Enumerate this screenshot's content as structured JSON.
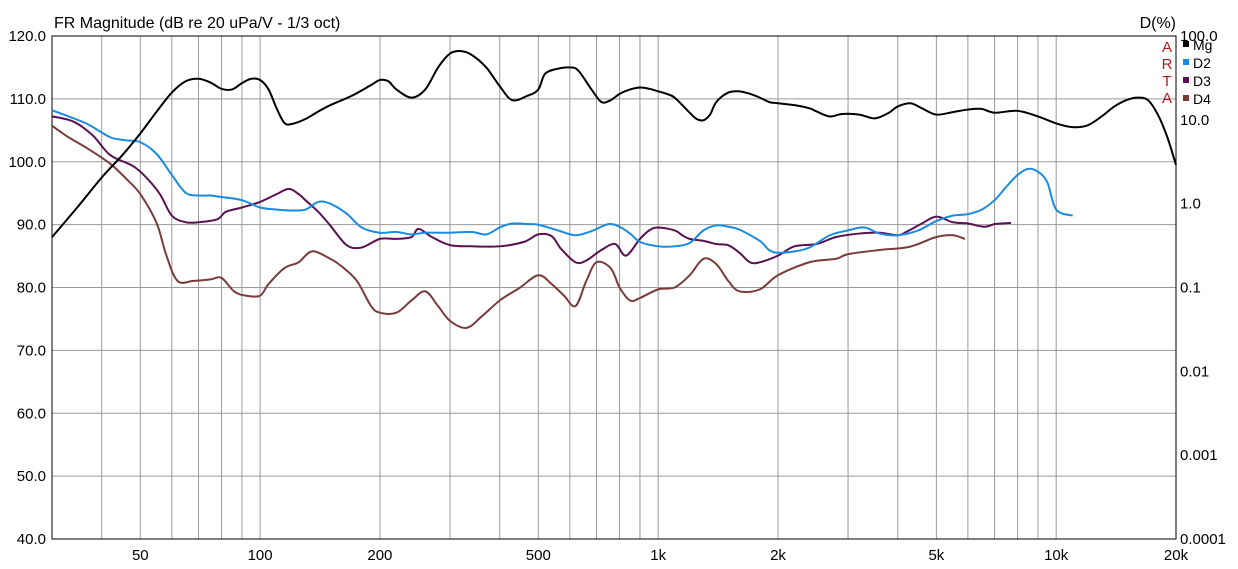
{
  "chart_data": {
    "type": "line",
    "title": "FR Magnitude (dB re 20 uPa/V - 1/3 oct)",
    "right_axis_title": "D(%)",
    "watermark": [
      "A",
      "R",
      "T",
      "A"
    ],
    "x_scale": "log",
    "xlim": [
      30,
      20000
    ],
    "x_tick_labels": [
      "50",
      "100",
      "200",
      "500",
      "1k",
      "2k",
      "5k",
      "10k",
      "20k"
    ],
    "x_tick_values": [
      50,
      100,
      200,
      500,
      1000,
      2000,
      5000,
      10000,
      20000
    ],
    "ylim": [
      40,
      120
    ],
    "y_tick_labels": [
      "120.0",
      "110.0",
      "100.0",
      "90.0",
      "80.0",
      "70.0",
      "60.0",
      "50.0",
      "40.0"
    ],
    "y_tick_values": [
      120,
      110,
      100,
      90,
      80,
      70,
      60,
      50,
      40
    ],
    "y2_scale": "log",
    "y2lim": [
      0.0001,
      100
    ],
    "y2_tick_labels": [
      "100.0",
      "10.0",
      "1.0",
      "0.1",
      "0.01",
      "0.001",
      "0.0001"
    ],
    "y2_tick_values": [
      100,
      10,
      1,
      0.1,
      0.01,
      0.001,
      0.0001
    ],
    "grid": true,
    "legend_position": "top-right",
    "series": [
      {
        "name": "Mg",
        "axis": "left",
        "color": "#000000",
        "points": [
          [
            30,
            88
          ],
          [
            35,
            93
          ],
          [
            40,
            97.5
          ],
          [
            45,
            101
          ],
          [
            50,
            104.5
          ],
          [
            55,
            108
          ],
          [
            60,
            111
          ],
          [
            65,
            112.8
          ],
          [
            70,
            113.2
          ],
          [
            75,
            112.6
          ],
          [
            80,
            111.6
          ],
          [
            85,
            111.5
          ],
          [
            90,
            112.5
          ],
          [
            95,
            113.2
          ],
          [
            100,
            113
          ],
          [
            105,
            111.5
          ],
          [
            110,
            108.5
          ],
          [
            115,
            106.2
          ],
          [
            120,
            106
          ],
          [
            130,
            106.8
          ],
          [
            140,
            108
          ],
          [
            150,
            109
          ],
          [
            170,
            110.5
          ],
          [
            190,
            112.2
          ],
          [
            200,
            113
          ],
          [
            210,
            112.8
          ],
          [
            220,
            111.5
          ],
          [
            240,
            110.2
          ],
          [
            260,
            111.5
          ],
          [
            280,
            115
          ],
          [
            300,
            117.2
          ],
          [
            320,
            117.6
          ],
          [
            340,
            117
          ],
          [
            370,
            115
          ],
          [
            400,
            112
          ],
          [
            430,
            109.8
          ],
          [
            470,
            110.5
          ],
          [
            500,
            111.5
          ],
          [
            520,
            114
          ],
          [
            560,
            114.8
          ],
          [
            600,
            115
          ],
          [
            630,
            114.5
          ],
          [
            680,
            111.5
          ],
          [
            720,
            109.5
          ],
          [
            760,
            109.8
          ],
          [
            800,
            110.8
          ],
          [
            850,
            111.5
          ],
          [
            900,
            111.8
          ],
          [
            950,
            111.6
          ],
          [
            1000,
            111.2
          ],
          [
            1050,
            110.8
          ],
          [
            1100,
            110.2
          ],
          [
            1200,
            107.8
          ],
          [
            1250,
            106.8
          ],
          [
            1300,
            106.6
          ],
          [
            1350,
            107.5
          ],
          [
            1400,
            109.5
          ],
          [
            1500,
            111
          ],
          [
            1600,
            111.2
          ],
          [
            1700,
            110.8
          ],
          [
            1800,
            110.2
          ],
          [
            1900,
            109.5
          ],
          [
            2000,
            109.3
          ],
          [
            2200,
            109
          ],
          [
            2400,
            108.5
          ],
          [
            2500,
            108
          ],
          [
            2700,
            107.2
          ],
          [
            2900,
            107.6
          ],
          [
            3200,
            107.5
          ],
          [
            3500,
            106.9
          ],
          [
            3800,
            107.8
          ],
          [
            4000,
            108.8
          ],
          [
            4300,
            109.3
          ],
          [
            4600,
            108.5
          ],
          [
            5000,
            107.5
          ],
          [
            5500,
            107.9
          ],
          [
            6000,
            108.3
          ],
          [
            6500,
            108.4
          ],
          [
            7000,
            107.8
          ],
          [
            8000,
            108.1
          ],
          [
            9000,
            107.2
          ],
          [
            10000,
            106.1
          ],
          [
            11000,
            105.5
          ],
          [
            12000,
            105.8
          ],
          [
            13000,
            107.2
          ],
          [
            14000,
            108.8
          ],
          [
            15000,
            109.8
          ],
          [
            16000,
            110.2
          ],
          [
            17000,
            109.8
          ],
          [
            18000,
            107.5
          ],
          [
            19000,
            104
          ],
          [
            20000,
            99.5
          ]
        ]
      },
      {
        "name": "D2",
        "axis": "right",
        "color": "#1a8ce0",
        "points": [
          [
            30,
            13
          ],
          [
            33,
            11
          ],
          [
            37,
            8.8
          ],
          [
            42,
            6.2
          ],
          [
            46,
            5.7
          ],
          [
            50,
            5.4
          ],
          [
            55,
            3.9
          ],
          [
            60,
            2.2
          ],
          [
            65,
            1.35
          ],
          [
            70,
            1.25
          ],
          [
            75,
            1.25
          ],
          [
            80,
            1.2
          ],
          [
            90,
            1.1
          ],
          [
            100,
            0.9
          ],
          [
            110,
            0.85
          ],
          [
            120,
            0.83
          ],
          [
            130,
            0.85
          ],
          [
            140,
            1.05
          ],
          [
            150,
            1.0
          ],
          [
            165,
            0.76
          ],
          [
            180,
            0.52
          ],
          [
            200,
            0.45
          ],
          [
            220,
            0.46
          ],
          [
            240,
            0.43
          ],
          [
            260,
            0.45
          ],
          [
            300,
            0.45
          ],
          [
            340,
            0.46
          ],
          [
            370,
            0.43
          ],
          [
            400,
            0.52
          ],
          [
            430,
            0.58
          ],
          [
            470,
            0.57
          ],
          [
            500,
            0.56
          ],
          [
            560,
            0.48
          ],
          [
            620,
            0.42
          ],
          [
            680,
            0.47
          ],
          [
            750,
            0.57
          ],
          [
            800,
            0.53
          ],
          [
            850,
            0.44
          ],
          [
            900,
            0.35
          ],
          [
            1000,
            0.31
          ],
          [
            1100,
            0.31
          ],
          [
            1200,
            0.34
          ],
          [
            1300,
            0.48
          ],
          [
            1400,
            0.55
          ],
          [
            1500,
            0.53
          ],
          [
            1600,
            0.49
          ],
          [
            1800,
            0.36
          ],
          [
            1900,
            0.28
          ],
          [
            2000,
            0.26
          ],
          [
            2200,
            0.27
          ],
          [
            2400,
            0.3
          ],
          [
            2700,
            0.42
          ],
          [
            3000,
            0.48
          ],
          [
            3300,
            0.52
          ],
          [
            3600,
            0.44
          ],
          [
            4000,
            0.42
          ],
          [
            4500,
            0.48
          ],
          [
            5000,
            0.62
          ],
          [
            5500,
            0.72
          ],
          [
            6000,
            0.75
          ],
          [
            6500,
            0.85
          ],
          [
            7000,
            1.1
          ],
          [
            7500,
            1.6
          ],
          [
            8000,
            2.2
          ],
          [
            8500,
            2.6
          ],
          [
            9000,
            2.4
          ],
          [
            9500,
            1.8
          ],
          [
            10000,
            0.85
          ],
          [
            11000,
            0.72
          ]
        ]
      },
      {
        "name": "D3",
        "axis": "right",
        "color": "#5a1052",
        "points": [
          [
            30,
            11
          ],
          [
            34,
            9.5
          ],
          [
            38,
            6.5
          ],
          [
            42,
            3.8
          ],
          [
            48,
            2.8
          ],
          [
            52,
            2.0
          ],
          [
            56,
            1.3
          ],
          [
            60,
            0.72
          ],
          [
            65,
            0.6
          ],
          [
            70,
            0.6
          ],
          [
            78,
            0.65
          ],
          [
            82,
            0.8
          ],
          [
            90,
            0.9
          ],
          [
            100,
            1.05
          ],
          [
            110,
            1.3
          ],
          [
            118,
            1.5
          ],
          [
            125,
            1.3
          ],
          [
            130,
            1.1
          ],
          [
            140,
            0.8
          ],
          [
            150,
            0.55
          ],
          [
            165,
            0.32
          ],
          [
            180,
            0.3
          ],
          [
            200,
            0.38
          ],
          [
            220,
            0.38
          ],
          [
            240,
            0.4
          ],
          [
            250,
            0.5
          ],
          [
            270,
            0.4
          ],
          [
            300,
            0.32
          ],
          [
            340,
            0.31
          ],
          [
            400,
            0.31
          ],
          [
            460,
            0.35
          ],
          [
            500,
            0.43
          ],
          [
            540,
            0.41
          ],
          [
            570,
            0.29
          ],
          [
            620,
            0.2
          ],
          [
            660,
            0.21
          ],
          [
            720,
            0.28
          ],
          [
            780,
            0.33
          ],
          [
            830,
            0.24
          ],
          [
            900,
            0.38
          ],
          [
            950,
            0.48
          ],
          [
            1000,
            0.52
          ],
          [
            1100,
            0.48
          ],
          [
            1150,
            0.42
          ],
          [
            1200,
            0.38
          ],
          [
            1300,
            0.36
          ],
          [
            1400,
            0.33
          ],
          [
            1500,
            0.32
          ],
          [
            1600,
            0.26
          ],
          [
            1700,
            0.2
          ],
          [
            1800,
            0.2
          ],
          [
            2000,
            0.24
          ],
          [
            2200,
            0.31
          ],
          [
            2500,
            0.33
          ],
          [
            2800,
            0.4
          ],
          [
            3200,
            0.44
          ],
          [
            3600,
            0.45
          ],
          [
            4000,
            0.42
          ],
          [
            4200,
            0.46
          ],
          [
            4600,
            0.58
          ],
          [
            5000,
            0.7
          ],
          [
            5500,
            0.6
          ],
          [
            6000,
            0.58
          ],
          [
            6600,
            0.53
          ],
          [
            7000,
            0.57
          ],
          [
            7700,
            0.59
          ]
        ]
      },
      {
        "name": "D4",
        "axis": "right",
        "color": "#7a3b3b",
        "points": [
          [
            30,
            8.5
          ],
          [
            33,
            6.2
          ],
          [
            37,
            4.5
          ],
          [
            42,
            3.0
          ],
          [
            46,
            2.0
          ],
          [
            50,
            1.3
          ],
          [
            55,
            0.58
          ],
          [
            58,
            0.25
          ],
          [
            62,
            0.12
          ],
          [
            68,
            0.12
          ],
          [
            75,
            0.125
          ],
          [
            80,
            0.13
          ],
          [
            86,
            0.09
          ],
          [
            92,
            0.08
          ],
          [
            100,
            0.08
          ],
          [
            105,
            0.11
          ],
          [
            115,
            0.17
          ],
          [
            125,
            0.2
          ],
          [
            135,
            0.27
          ],
          [
            150,
            0.22
          ],
          [
            160,
            0.18
          ],
          [
            175,
            0.12
          ],
          [
            190,
            0.06
          ],
          [
            200,
            0.05
          ],
          [
            220,
            0.05
          ],
          [
            240,
            0.07
          ],
          [
            260,
            0.09
          ],
          [
            280,
            0.06
          ],
          [
            300,
            0.04
          ],
          [
            330,
            0.033
          ],
          [
            360,
            0.045
          ],
          [
            400,
            0.07
          ],
          [
            450,
            0.1
          ],
          [
            500,
            0.14
          ],
          [
            540,
            0.11
          ],
          [
            580,
            0.08
          ],
          [
            620,
            0.06
          ],
          [
            660,
            0.12
          ],
          [
            700,
            0.2
          ],
          [
            760,
            0.17
          ],
          [
            800,
            0.1
          ],
          [
            850,
            0.07
          ],
          [
            900,
            0.075
          ],
          [
            1000,
            0.095
          ],
          [
            1100,
            0.1
          ],
          [
            1200,
            0.14
          ],
          [
            1300,
            0.22
          ],
          [
            1400,
            0.19
          ],
          [
            1500,
            0.12
          ],
          [
            1600,
            0.09
          ],
          [
            1800,
            0.095
          ],
          [
            2000,
            0.14
          ],
          [
            2400,
            0.2
          ],
          [
            2800,
            0.22
          ],
          [
            3000,
            0.25
          ],
          [
            3600,
            0.28
          ],
          [
            4200,
            0.3
          ],
          [
            4500,
            0.33
          ],
          [
            5000,
            0.4
          ],
          [
            5500,
            0.42
          ],
          [
            5900,
            0.38
          ]
        ]
      }
    ]
  }
}
